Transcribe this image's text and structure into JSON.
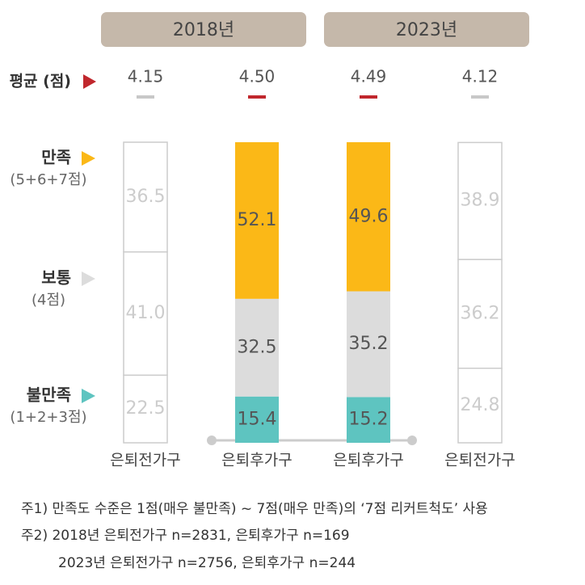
{
  "chart_data": {
    "type": "bar",
    "stacked": true,
    "groups": [
      "2018년",
      "2023년"
    ],
    "categories": [
      "은퇴전가구",
      "은퇴후가구",
      "은퇴후가구",
      "은퇴전가구"
    ],
    "highlighted": [
      false,
      true,
      true,
      false
    ],
    "ylim": [
      0,
      100
    ],
    "averages": {
      "label": "평균 (점)",
      "color": "#c0272d",
      "values": [
        4.15,
        4.5,
        4.49,
        4.12
      ],
      "value_labels": [
        "4.15",
        "4.50",
        "4.49",
        "4.12"
      ]
    },
    "series": [
      {
        "name": "불만족",
        "sublabel": "(1+2+3점)",
        "color": "#5ec4c0",
        "values": [
          22.5,
          15.4,
          15.2,
          24.8
        ]
      },
      {
        "name": "보통",
        "sublabel": "(4점)",
        "color": "#dcdcdc",
        "values": [
          41,
          32.5,
          35.2,
          36.2
        ],
        "value_labels": [
          "41.0",
          "32.5",
          "35.2",
          "36.2"
        ]
      },
      {
        "name": "만족",
        "sublabel": "(5+6+7점)",
        "color": "#fbb817",
        "values": [
          36.5,
          52.1,
          49.6,
          38.9
        ]
      }
    ],
    "notes": [
      "주1) 만족도 수준은 1점(매우 불만족) ~ 7점(매우 만족)의 ‘7점 리커트척도’ 사용",
      "주2) 2018년 은퇴전가구 n=2831, 은퇴후가구 n=169",
      "2023년 은퇴전가구 n=2756, 은퇴후가구 n=244"
    ]
  }
}
